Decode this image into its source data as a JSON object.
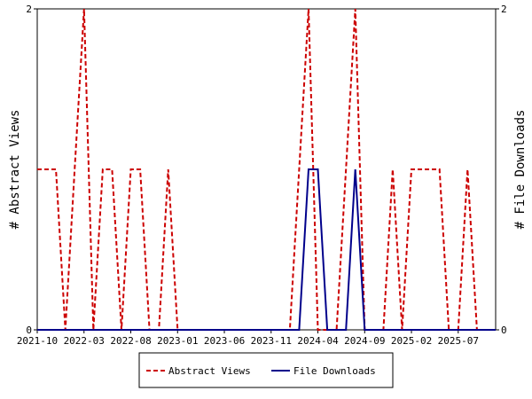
{
  "chart_data": {
    "type": "line",
    "ylabel_left": "# Abstract Views",
    "ylabel_right": "# File Downloads",
    "ylim_left": [
      0,
      2
    ],
    "ylim_right": [
      0,
      2
    ],
    "y_ticks_left": [
      "0",
      "2"
    ],
    "y_ticks_right": [
      "0",
      "2"
    ],
    "x_tick_labels": [
      "2021-10",
      "2022-03",
      "2022-08",
      "2023-01",
      "2023-06",
      "2023-11",
      "2024-04",
      "2024-09",
      "2025-02",
      "2025-07"
    ],
    "x_range_months": [
      "2021-10",
      "2025-11"
    ],
    "grid": false,
    "legend_position": "bottom",
    "series": [
      {
        "name": "Abstract Views",
        "color": "#cc0000",
        "style": "dashed",
        "x": [
          "2021-10",
          "2021-11",
          "2021-12",
          "2022-01",
          "2022-02",
          "2022-03",
          "2022-04",
          "2022-05",
          "2022-06",
          "2022-07",
          "2022-08",
          "2022-09",
          "2022-10",
          "2022-11",
          "2022-12",
          "2023-01",
          "2023-02",
          "2023-03",
          "2023-04",
          "2023-05",
          "2023-06",
          "2023-07",
          "2023-08",
          "2023-09",
          "2023-10",
          "2023-11",
          "2023-12",
          "2024-01",
          "2024-02",
          "2024-03",
          "2024-04",
          "2024-05",
          "2024-06",
          "2024-07",
          "2024-08",
          "2024-09",
          "2024-10",
          "2024-11",
          "2024-12",
          "2025-01",
          "2025-02",
          "2025-03",
          "2025-04",
          "2025-05",
          "2025-06",
          "2025-07",
          "2025-08",
          "2025-09",
          "2025-10",
          "2025-11"
        ],
        "values": [
          1,
          1,
          1,
          0,
          1,
          2,
          0,
          1,
          1,
          0,
          1,
          1,
          0,
          0,
          1,
          0,
          0,
          0,
          0,
          0,
          0,
          0,
          0,
          0,
          0,
          0,
          0,
          0,
          1,
          2,
          0,
          0,
          0,
          1,
          2,
          0,
          0,
          0,
          1,
          0,
          1,
          1,
          1,
          1,
          0,
          0,
          1,
          0,
          0,
          0
        ]
      },
      {
        "name": "File Downloads",
        "color": "#00008b",
        "style": "solid",
        "x": [
          "2021-10",
          "2021-11",
          "2021-12",
          "2022-01",
          "2022-02",
          "2022-03",
          "2022-04",
          "2022-05",
          "2022-06",
          "2022-07",
          "2022-08",
          "2022-09",
          "2022-10",
          "2022-11",
          "2022-12",
          "2023-01",
          "2023-02",
          "2023-03",
          "2023-04",
          "2023-05",
          "2023-06",
          "2023-07",
          "2023-08",
          "2023-09",
          "2023-10",
          "2023-11",
          "2023-12",
          "2024-01",
          "2024-02",
          "2024-03",
          "2024-04",
          "2024-05",
          "2024-06",
          "2024-07",
          "2024-08",
          "2024-09",
          "2024-10",
          "2024-11",
          "2024-12",
          "2025-01",
          "2025-02",
          "2025-03",
          "2025-04",
          "2025-05",
          "2025-06",
          "2025-07",
          "2025-08",
          "2025-09",
          "2025-10",
          "2025-11"
        ],
        "values": [
          0,
          0,
          0,
          0,
          0,
          0,
          0,
          0,
          0,
          0,
          0,
          0,
          0,
          0,
          0,
          0,
          0,
          0,
          0,
          0,
          0,
          0,
          0,
          0,
          0,
          0,
          0,
          0,
          0,
          1,
          1,
          0,
          0,
          0,
          1,
          0,
          0,
          0,
          0,
          0,
          0,
          0,
          0,
          0,
          0,
          0,
          0,
          0,
          0,
          0
        ]
      }
    ]
  }
}
